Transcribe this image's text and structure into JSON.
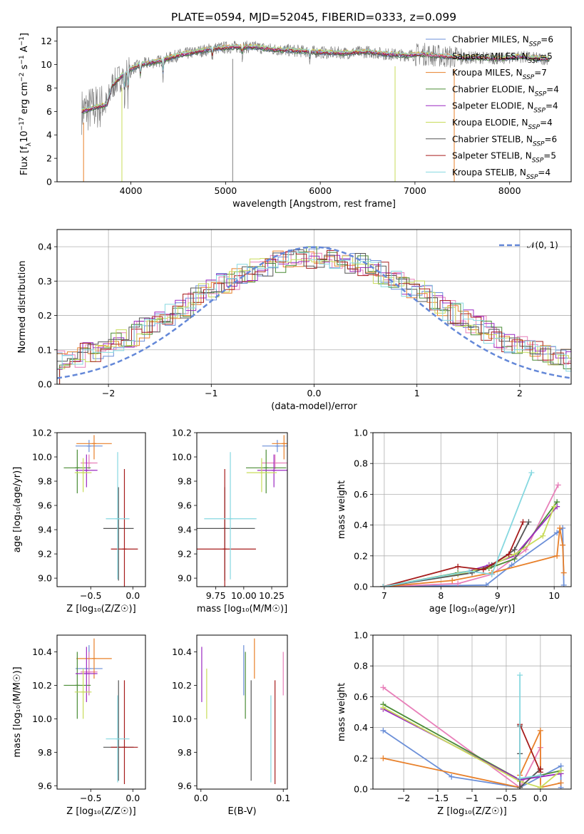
{
  "title": "PLATE=0594, MJD=52045, FIBERID=0333, z=0.099",
  "colors": {
    "Chabrier MILES": "#6b8fd8",
    "Salpeter MILES": "#e87fb9",
    "Kroupa MILES": "#e8802a",
    "Chabrier ELODIE": "#4a8c35",
    "Salpeter ELODIE": "#9b29c2",
    "Kroupa ELODIE": "#c8dc5a",
    "Chabrier STELIB": "#555555",
    "Salpeter STELIB": "#a61c1c",
    "Kroupa STELIB": "#86d8e0",
    "data": "#808080",
    "normal": "#6488d8"
  },
  "chart_data": [
    {
      "type": "line",
      "name": "spectrum",
      "xlabel": "wavelength [Angstrom, rest frame]",
      "ylabel": "Flux [f$_\\lambda$10$^{-17}$ erg cm$^{-2}$ s$^{-1}$ A$^{-1}$]",
      "ylabel_parts": [
        "Flux [f",
        "λ",
        "10",
        "−17",
        " erg cm",
        "−2",
        " s",
        "−1",
        " A",
        "−1",
        "]"
      ],
      "xlim": [
        3220,
        8650
      ],
      "ylim": [
        0,
        13.2
      ],
      "xticks": [
        4000,
        5000,
        6000,
        7000,
        8000
      ],
      "yticks": [
        0,
        2,
        4,
        6,
        8,
        10,
        12
      ],
      "legend_position": "upper right",
      "legend": [
        {
          "label": "Chabrier MILES, N",
          "sub": "SSP",
          "tail": "=6",
          "model": "Chabrier MILES"
        },
        {
          "label": "Salpeter MILES, N",
          "sub": "SSP",
          "tail": "=5",
          "model": "Salpeter MILES"
        },
        {
          "label": "Kroupa MILES, N",
          "sub": "SSP",
          "tail": "=7",
          "model": "Kroupa MILES"
        },
        {
          "label": "Chabrier ELODIE, N",
          "sub": "SSP",
          "tail": "=4",
          "model": "Chabrier ELODIE"
        },
        {
          "label": "Salpeter ELODIE, N",
          "sub": "SSP",
          "tail": "=4",
          "model": "Salpeter ELODIE"
        },
        {
          "label": "Kroupa ELODIE, N",
          "sub": "SSP",
          "tail": "=4",
          "model": "Kroupa ELODIE"
        },
        {
          "label": "Chabrier STELIB, N",
          "sub": "SSP",
          "tail": "=6",
          "model": "Chabrier STELIB"
        },
        {
          "label": "Salpeter STELIB, N",
          "sub": "SSP",
          "tail": "=5",
          "model": "Salpeter STELIB"
        },
        {
          "label": "Kroupa STELIB, N",
          "sub": "SSP",
          "tail": "=4",
          "model": "Kroupa STELIB"
        }
      ],
      "continuum": [
        [
          3480,
          6.0
        ],
        [
          3600,
          6.3
        ],
        [
          3750,
          6.6
        ],
        [
          3800,
          8.2
        ],
        [
          3900,
          9.0
        ],
        [
          4000,
          9.6
        ],
        [
          4100,
          10.0
        ],
        [
          4300,
          10.3
        ],
        [
          4500,
          10.8
        ],
        [
          4700,
          11.1
        ],
        [
          4900,
          11.4
        ],
        [
          5100,
          11.5
        ],
        [
          5300,
          11.5
        ],
        [
          5500,
          11.3
        ],
        [
          5700,
          11.2
        ],
        [
          5900,
          11.1
        ],
        [
          6100,
          11.0
        ],
        [
          6300,
          11.0
        ],
        [
          6500,
          11.1
        ],
        [
          6700,
          10.9
        ],
        [
          6900,
          10.8
        ],
        [
          7100,
          10.9
        ],
        [
          7300,
          10.7
        ],
        [
          7500,
          10.6
        ],
        [
          7700,
          10.6
        ],
        [
          7900,
          10.5
        ],
        [
          8100,
          10.7
        ],
        [
          8300,
          10.5
        ],
        [
          8400,
          10.5
        ]
      ]
    },
    {
      "type": "line",
      "name": "residual distribution",
      "xlabel": "(data-model)/error",
      "ylabel": "Normed distribution",
      "xlim": [
        -2.5,
        2.5
      ],
      "ylim": [
        0,
        0.45
      ],
      "xticks": [
        -2,
        -1,
        0,
        1,
        2
      ],
      "yticks": [
        0.0,
        0.1,
        0.2,
        0.3,
        0.4
      ],
      "grid": true,
      "legend_position": "upper right",
      "legend_label": "𝒩(0, 1)",
      "reference_curve": {
        "type": "gaussian",
        "mean": 0,
        "sigma": 1
      }
    },
    {
      "type": "scatter",
      "name": "age vs Z",
      "xlabel": "Z [log₁₀(Z/Z☉)]",
      "ylabel": "age  [log₁₀(age/yr)]",
      "xlim": [
        -0.9,
        0.15
      ],
      "ylim": [
        8.93,
        10.2
      ],
      "xticks": [
        -0.5,
        0.0
      ],
      "yticks": [
        9.0,
        9.2,
        9.4,
        9.6,
        9.8,
        10.0,
        10.2
      ]
    },
    {
      "type": "scatter",
      "name": "age vs mass",
      "xlabel": "mass [log₁₀(M/M☉)]",
      "ylabel": "",
      "xlim": [
        9.58,
        10.39
      ],
      "ylim": [
        8.93,
        10.2
      ],
      "xticks": [
        9.75,
        10.0,
        10.25
      ],
      "xticklabels": [
        "9.75",
        "10.00",
        "10.25"
      ],
      "yticks": [
        9.0,
        9.2,
        9.4,
        9.6,
        9.8,
        10.0,
        10.2
      ]
    },
    {
      "type": "line",
      "name": "mass weight vs age",
      "xlabel": "age  [log₁₀(age/yr)]",
      "ylabel": "mass weight",
      "xlim": [
        6.8,
        10.3
      ],
      "ylim": [
        0,
        1.0
      ],
      "xticks": [
        7,
        8,
        9,
        10
      ],
      "yticks": [
        0.0,
        0.2,
        0.4,
        0.6,
        0.8,
        1.0
      ],
      "grid": true
    },
    {
      "type": "scatter",
      "name": "mass vs Z",
      "xlabel": "Z [log₁₀(Z/Z☉)]",
      "ylabel": "mass [log₁₀(M/M☉)]",
      "xlim": [
        -0.9,
        0.15
      ],
      "ylim": [
        9.58,
        10.5
      ],
      "xticks": [
        -0.5,
        0.0
      ],
      "yticks": [
        9.6,
        9.8,
        10.0,
        10.2,
        10.4
      ]
    },
    {
      "type": "scatter",
      "name": "mass vs E(B-V)",
      "xlabel": "E(B-V)",
      "ylabel": "",
      "xlim": [
        -0.005,
        0.105
      ],
      "ylim": [
        9.58,
        10.5
      ],
      "xticks": [
        0.0,
        0.1
      ],
      "yticks": [
        9.6,
        9.8,
        10.0,
        10.2,
        10.4
      ]
    },
    {
      "type": "line",
      "name": "mass weight vs Z",
      "xlabel": "Z [log₁₀(Z/Z☉)]",
      "ylabel": "mass weight",
      "xlim": [
        -2.45,
        0.45
      ],
      "ylim": [
        0,
        1.0
      ],
      "xticks": [
        -2.0,
        -1.5,
        -1.0,
        -0.5,
        0.0
      ],
      "yticks": [
        0.0,
        0.2,
        0.4,
        0.6,
        0.8,
        1.0
      ],
      "grid": true
    }
  ],
  "measurements": [
    {
      "model": "Chabrier MILES",
      "Z": -0.52,
      "Zerr": 0.16,
      "age": 10.09,
      "ageErr": [
        0.05,
        0.05
      ],
      "mass": 10.3,
      "massErr": [
        0.16,
        0.14
      ],
      "ebv": 0.052
    },
    {
      "model": "Salpeter MILES",
      "Z": -0.52,
      "Zerr": 0.1,
      "age": 9.95,
      "ageErr": [
        0.05,
        0.07
      ],
      "mass": 10.28,
      "massErr": [
        0.14,
        0.12
      ],
      "ebv": 0.1
    },
    {
      "model": "Kroupa MILES",
      "Z": -0.46,
      "Zerr": 0.21,
      "age": 10.11,
      "ageErr": [
        0.13,
        0.07
      ],
      "mass": 10.36,
      "massErr": [
        0.12,
        0.12
      ],
      "ebv": 0.065
    },
    {
      "model": "Chabrier ELODIE",
      "Z": -0.66,
      "Zerr": 0.16,
      "age": 9.91,
      "ageErr": [
        0.21,
        0.15
      ],
      "mass": 10.2,
      "massErr": [
        0.2,
        0.2
      ],
      "ebv": 0.054
    },
    {
      "model": "Salpeter ELODIE",
      "Z": -0.55,
      "Zerr": 0.13,
      "age": 9.89,
      "ageErr": [
        0.14,
        0.13
      ],
      "mass": 10.27,
      "massErr": [
        0.17,
        0.16
      ],
      "ebv": 0.001
    },
    {
      "model": "Kroupa ELODIE",
      "Z": -0.59,
      "Zerr": 0.1,
      "age": 9.87,
      "ageErr": [
        0.16,
        0.12
      ],
      "mass": 10.16,
      "massErr": [
        0.16,
        0.14
      ],
      "ebv": 0.007
    },
    {
      "model": "Chabrier STELIB",
      "Z": -0.17,
      "Zerr": 0.18,
      "age": 9.41,
      "ageErr": [
        0.43,
        0.34
      ],
      "mass": 9.83,
      "massErr": [
        0.2,
        0.4
      ],
      "ebv": 0.061
    },
    {
      "model": "Salpeter STELIB",
      "Z": -0.1,
      "Zerr": 0.16,
      "age": 9.24,
      "ageErr": [
        0.34,
        0.66
      ],
      "mass": 9.83,
      "massErr": [
        0.22,
        0.4
      ],
      "ebv": 0.09
    },
    {
      "model": "Kroupa STELIB",
      "Z": -0.18,
      "Zerr": 0.14,
      "age": 9.49,
      "ageErr": [
        0.5,
        0.55
      ],
      "mass": 9.88,
      "massErr": [
        0.26,
        0.26
      ],
      "ebv": 0.085
    }
  ],
  "mass_weights_vs_age": [
    {
      "model": "Chabrier MILES",
      "points": [
        [
          6.98,
          0.0
        ],
        [
          8.8,
          0.01
        ],
        [
          9.25,
          0.14
        ],
        [
          10.05,
          0.35
        ],
        [
          10.15,
          0.38
        ],
        [
          10.17,
          0.01
        ]
      ]
    },
    {
      "model": "Salpeter MILES",
      "points": [
        [
          6.98,
          0.0
        ],
        [
          8.3,
          0.02
        ],
        [
          8.9,
          0.08
        ],
        [
          9.5,
          0.24
        ],
        [
          10.07,
          0.66
        ]
      ]
    },
    {
      "model": "Kroupa MILES",
      "points": [
        [
          6.98,
          0.0
        ],
        [
          8.2,
          0.04
        ],
        [
          8.9,
          0.09
        ],
        [
          10.05,
          0.2
        ],
        [
          10.1,
          0.38
        ],
        [
          10.15,
          0.27
        ],
        [
          10.17,
          0.09
        ]
      ]
    },
    {
      "model": "Chabrier ELODIE",
      "points": [
        [
          6.98,
          0.0
        ],
        [
          8.3,
          0.09
        ],
        [
          8.85,
          0.12
        ],
        [
          9.3,
          0.18
        ],
        [
          10.05,
          0.55
        ]
      ]
    },
    {
      "model": "Salpeter ELODIE",
      "points": [
        [
          6.98,
          0.0
        ],
        [
          8.3,
          0.08
        ],
        [
          8.85,
          0.14
        ],
        [
          9.3,
          0.2
        ],
        [
          10.05,
          0.52
        ]
      ]
    },
    {
      "model": "Kroupa ELODIE",
      "points": [
        [
          6.98,
          0.0
        ],
        [
          8.3,
          0.08
        ],
        [
          8.85,
          0.13
        ],
        [
          9.3,
          0.21
        ],
        [
          9.8,
          0.33
        ],
        [
          10.0,
          0.52
        ]
      ]
    },
    {
      "model": "Chabrier STELIB",
      "points": [
        [
          6.98,
          0.0
        ],
        [
          8.55,
          0.09
        ],
        [
          8.9,
          0.14
        ],
        [
          9.3,
          0.24
        ],
        [
          9.55,
          0.42
        ]
      ]
    },
    {
      "model": "Salpeter STELIB",
      "points": [
        [
          6.98,
          0.0
        ],
        [
          8.3,
          0.13
        ],
        [
          8.75,
          0.11
        ],
        [
          9.2,
          0.21
        ],
        [
          9.45,
          0.42
        ]
      ]
    },
    {
      "model": "Kroupa STELIB",
      "points": [
        [
          6.98,
          0.0
        ],
        [
          8.5,
          0.1
        ],
        [
          8.9,
          0.08
        ],
        [
          9.6,
          0.74
        ]
      ]
    }
  ],
  "mass_weights_vs_Z": [
    {
      "model": "Chabrier MILES",
      "points": [
        [
          -2.3,
          0.38
        ],
        [
          -1.3,
          0.08
        ],
        [
          -0.3,
          0.01
        ],
        [
          0.3,
          0.15
        ],
        [
          0.3,
          0.01
        ]
      ]
    },
    {
      "model": "Salpeter MILES",
      "points": [
        [
          -2.3,
          0.66
        ],
        [
          -0.3,
          0.01
        ],
        [
          0.0,
          0.27
        ],
        [
          0.0,
          0.01
        ]
      ]
    },
    {
      "model": "Kroupa MILES",
      "points": [
        [
          -2.3,
          0.2
        ],
        [
          -0.3,
          0.01
        ],
        [
          -0.3,
          0.09
        ],
        [
          0.0,
          0.38
        ],
        [
          0.0,
          0.01
        ],
        [
          0.3,
          0.04
        ]
      ]
    },
    {
      "model": "Chabrier ELODIE",
      "points": [
        [
          -2.3,
          0.55
        ],
        [
          -0.3,
          0.06
        ],
        [
          0.3,
          0.12
        ]
      ]
    },
    {
      "model": "Salpeter ELODIE",
      "points": [
        [
          -2.3,
          0.52
        ],
        [
          -0.3,
          0.06
        ],
        [
          0.3,
          0.1
        ]
      ]
    },
    {
      "model": "Kroupa ELODIE",
      "points": [
        [
          -2.3,
          0.53
        ],
        [
          -0.3,
          0.05
        ],
        [
          0.0,
          0.01
        ],
        [
          0.3,
          0.12
        ]
      ]
    },
    {
      "model": "Chabrier STELIB",
      "points": [
        [
          -0.3,
          0.41
        ],
        [
          -0.3,
          0.23
        ],
        [
          -0.3,
          0.01
        ],
        [
          0.0,
          0.13
        ],
        [
          0.0,
          0.09
        ]
      ]
    },
    {
      "model": "Salpeter STELIB",
      "points": [
        [
          -0.3,
          0.42
        ],
        [
          0.0,
          0.11
        ],
        [
          0.0,
          0.13
        ]
      ]
    },
    {
      "model": "Kroupa STELIB",
      "points": [
        [
          -0.3,
          0.74
        ],
        [
          -0.3,
          0.07
        ],
        [
          0.0,
          0.09
        ]
      ]
    }
  ]
}
